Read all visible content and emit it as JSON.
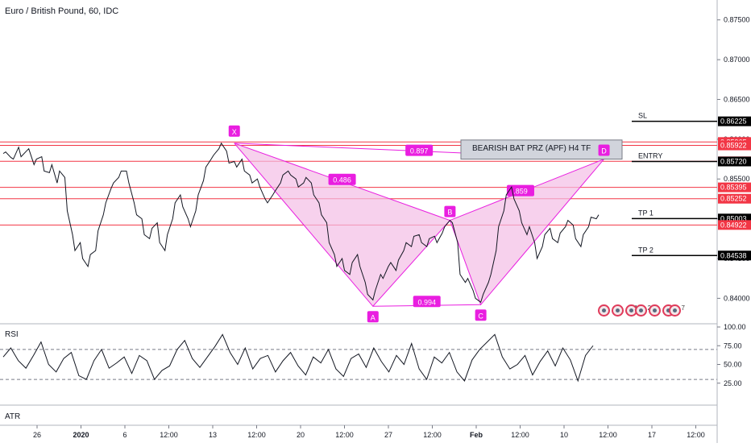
{
  "header": {
    "title": "Euro / British Pound, 60, IDC"
  },
  "colors": {
    "price_line": "#131722",
    "pattern": "#e91ee0",
    "pattern_fill": "#f3bde6",
    "level_red": "#f23645",
    "label_red": "#f23645",
    "label_black": "#000000",
    "rsi_line": "#131722",
    "grid": "#e0e3eb"
  },
  "chart_data": [
    {
      "type": "line",
      "name": "price",
      "y_ticks": [
        0.84,
        0.845,
        0.85,
        0.855,
        0.86,
        0.865,
        0.87,
        0.875
      ],
      "y_tick_labels": [
        "0.84000",
        "0.84500",
        "0.85000",
        "0.85500",
        "0.86000",
        "0.86500",
        "0.87000",
        "0.87500"
      ],
      "ylim": [
        0.8368,
        0.8775
      ],
      "x_tick_labels": [
        "26",
        "2020",
        "6",
        "12:00",
        "13",
        "12:00",
        "20",
        "12:00",
        "27",
        "12:00",
        "Feb",
        "12:00",
        "10",
        "12:00",
        "17",
        "12:00"
      ],
      "price_path": [
        [
          0.8582,
          0.8584
        ],
        [
          0.8577,
          0.8575
        ],
        [
          0.859,
          0.8578
        ],
        [
          0.8585,
          0.8588
        ],
        [
          0.8568,
          0.8575
        ],
        [
          0.8578,
          0.856
        ],
        [
          0.8558,
          0.8568
        ],
        [
          0.8545,
          0.856
        ],
        [
          0.8552,
          0.851
        ],
        [
          0.848,
          0.846
        ],
        [
          0.847,
          0.845
        ],
        [
          0.844,
          0.8455
        ],
        [
          0.846,
          0.8485
        ],
        [
          0.8505,
          0.852
        ],
        [
          0.8538,
          0.8545
        ],
        [
          0.8552,
          0.856
        ],
        [
          0.856,
          0.8545
        ],
        [
          0.852,
          0.8505
        ],
        [
          0.85,
          0.848
        ],
        [
          0.8475,
          0.8488
        ],
        [
          0.8495,
          0.847
        ],
        [
          0.846,
          0.848
        ],
        [
          0.85,
          0.852
        ],
        [
          0.853,
          0.8515
        ],
        [
          0.85,
          0.849
        ],
        [
          0.851,
          0.853
        ],
        [
          0.8548,
          0.8565
        ],
        [
          0.8575,
          0.858
        ],
        [
          0.8588,
          0.8595
        ],
        [
          0.8585,
          0.857
        ],
        [
          0.8572,
          0.8565
        ],
        [
          0.8575,
          0.856
        ],
        [
          0.8555,
          0.8545
        ],
        [
          0.855,
          0.854
        ],
        [
          0.8525,
          0.852
        ],
        [
          0.853,
          0.8535
        ],
        [
          0.8545,
          0.8555
        ],
        [
          0.856,
          0.8555
        ],
        [
          0.855,
          0.854
        ],
        [
          0.8545,
          0.8552
        ],
        [
          0.8545,
          0.853
        ],
        [
          0.852,
          0.8505
        ],
        [
          0.8495,
          0.847
        ],
        [
          0.8455,
          0.844
        ],
        [
          0.845,
          0.8435
        ],
        [
          0.843,
          0.8445
        ],
        [
          0.8455,
          0.844
        ],
        [
          0.842,
          0.8405
        ],
        [
          0.8398,
          0.841
        ],
        [
          0.843,
          0.8425
        ],
        [
          0.844,
          0.8445
        ],
        [
          0.8435,
          0.8448
        ],
        [
          0.846,
          0.847
        ],
        [
          0.8465,
          0.8478
        ],
        [
          0.848,
          0.847
        ],
        [
          0.8465,
          0.8475
        ],
        [
          0.8478,
          0.847
        ],
        [
          0.8482,
          0.849
        ],
        [
          0.8498,
          0.8495
        ],
        [
          0.847,
          0.843
        ],
        [
          0.842,
          0.8425
        ],
        [
          0.841,
          0.84
        ],
        [
          0.8395,
          0.8405
        ],
        [
          0.842,
          0.843
        ],
        [
          0.846,
          0.849
        ],
        [
          0.851,
          0.853
        ],
        [
          0.854,
          0.8525
        ],
        [
          0.851,
          0.8495
        ],
        [
          0.848,
          0.849
        ],
        [
          0.847,
          0.845
        ],
        [
          0.8465,
          0.848
        ],
        [
          0.8488,
          0.8475
        ],
        [
          0.847,
          0.8482
        ],
        [
          0.849,
          0.8498
        ],
        [
          0.8492,
          0.8475
        ],
        [
          0.8465,
          0.848
        ],
        [
          0.849,
          0.8502
        ],
        [
          0.85,
          0.8505
        ]
      ],
      "levels": [
        {
          "value": 0.86225,
          "label": "0.86225",
          "style": "black"
        },
        {
          "value": 0.85965,
          "label": "0.85965",
          "style": "red"
        },
        {
          "value": 0.85922,
          "label": "0.85922",
          "style": "red"
        },
        {
          "value": 0.85722,
          "label": "0.85722",
          "style": "red"
        },
        {
          "value": 0.8572,
          "label": "0.85720",
          "style": "black"
        },
        {
          "value": 0.85395,
          "label": "0.85395",
          "style": "red"
        },
        {
          "value": 0.85252,
          "label": "0.85252",
          "style": "red"
        },
        {
          "value": 0.85003,
          "label": "0.85003",
          "style": "black"
        },
        {
          "value": 0.84922,
          "label": "0.84922",
          "style": "red"
        },
        {
          "value": 0.84538,
          "label": "0.84538",
          "style": "black"
        }
      ],
      "annotations": [
        {
          "text": "SL",
          "value": 0.86225
        },
        {
          "text": "ENTRY",
          "value": 0.8572
        },
        {
          "text": "TP 1",
          "value": 0.85003
        },
        {
          "text": "TP 2",
          "value": 0.84538
        }
      ],
      "harmonic_pattern": {
        "points": [
          {
            "label": "X",
            "x_index": 30,
            "value": 0.8595
          },
          {
            "label": "A",
            "x_index": 48,
            "value": 0.839
          },
          {
            "label": "B",
            "x_index": 58,
            "value": 0.8498
          },
          {
            "label": "C",
            "x_index": 62,
            "value": 0.8392
          },
          {
            "label": "D",
            "x_index": 78,
            "value": 0.8575
          }
        ],
        "ratios": [
          "0.486",
          "0.994",
          ".859",
          "0.897"
        ],
        "zone_label": "BEARISH BAT PRZ (APF) H4 TF"
      },
      "events": {
        "group1_count": "17",
        "group2_count": "2",
        "group3_count": "7"
      }
    },
    {
      "type": "line",
      "name": "RSI",
      "title": "RSI",
      "y_ticks": [
        25,
        50,
        75,
        100
      ],
      "y_tick_labels": [
        "25.00",
        "50.00",
        "75.00",
        "100.00"
      ],
      "ylim": [
        0,
        100
      ],
      "bands": [
        30,
        70
      ],
      "values": [
        60,
        72,
        55,
        45,
        62,
        80,
        50,
        40,
        58,
        66,
        35,
        30,
        55,
        70,
        45,
        52,
        60,
        38,
        62,
        55,
        30,
        42,
        48,
        70,
        82,
        58,
        46,
        60,
        74,
        90,
        66,
        50,
        72,
        44,
        58,
        62,
        40,
        55,
        66,
        48,
        36,
        60,
        52,
        70,
        44,
        34,
        58,
        64,
        46,
        72,
        54,
        40,
        62,
        50,
        78,
        44,
        30,
        60,
        52,
        66,
        40,
        28,
        56,
        70,
        80,
        90,
        60,
        44,
        50,
        62,
        36,
        54,
        68,
        48,
        72,
        56,
        28,
        62,
        75
      ]
    },
    {
      "type": "line",
      "name": "ATR",
      "title": "ATR"
    }
  ]
}
